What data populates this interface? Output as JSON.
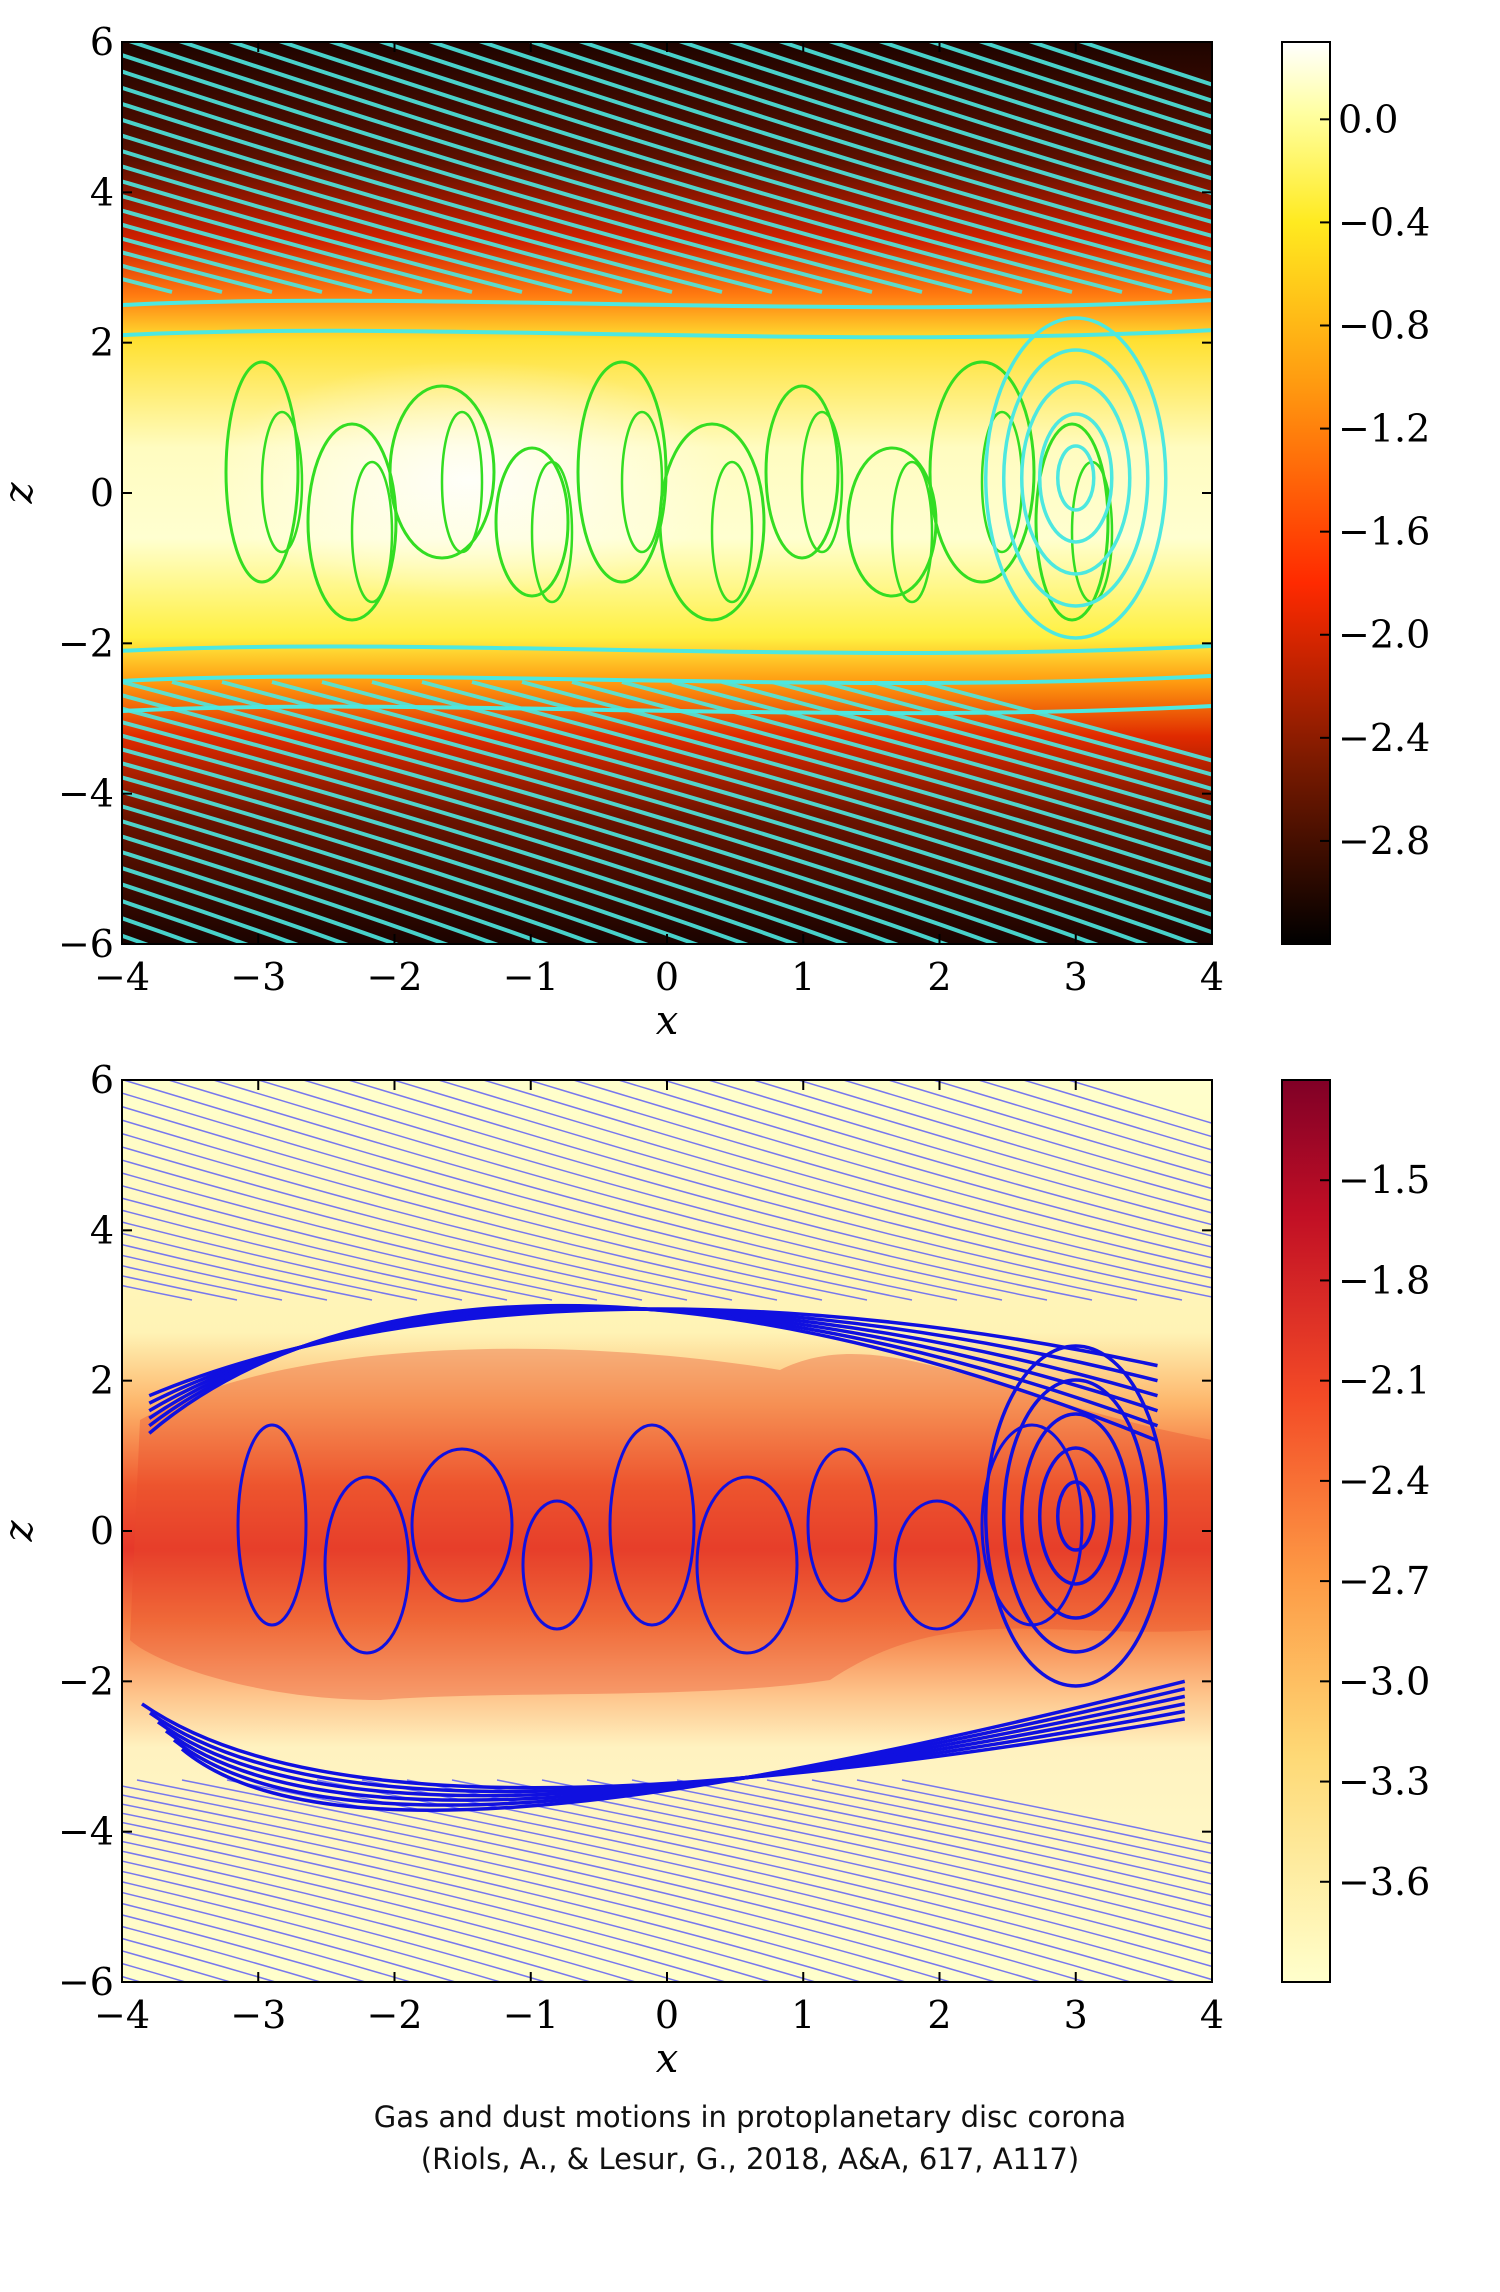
{
  "chart_data": [
    {
      "type": "heatmap",
      "panel": "top",
      "xlabel": "x",
      "ylabel": "z",
      "xlim": [
        -4,
        4
      ],
      "ylim": [
        -6,
        6
      ],
      "xticks": [
        -4,
        -3,
        -2,
        -1,
        0,
        1,
        2,
        3,
        4
      ],
      "yticks": [
        -6,
        -4,
        -2,
        0,
        2,
        4,
        6
      ],
      "colormap": "afmhot",
      "colorbar": {
        "range": [
          -3.2,
          0.3
        ],
        "ticks": [
          0.0,
          -0.4,
          -0.8,
          -1.2,
          -1.6,
          -2.0,
          -2.4,
          -2.8
        ],
        "tick_labels": [
          "0.0",
          "−0.4",
          "−0.8",
          "−1.2",
          "−1.6",
          "−2.0",
          "−2.4",
          "−2.8"
        ]
      },
      "overlay": "streamlines",
      "streamline_colors": {
        "inner": "#33dd22",
        "outer": "#4de8e0"
      }
    },
    {
      "type": "heatmap",
      "panel": "bottom",
      "xlabel": "x",
      "ylabel": "z",
      "xlim": [
        -4,
        4
      ],
      "ylim": [
        -6,
        6
      ],
      "xticks": [
        -4,
        -3,
        -2,
        -1,
        0,
        1,
        2,
        3,
        4
      ],
      "yticks": [
        -6,
        -4,
        -2,
        0,
        2,
        4,
        6
      ],
      "colormap": "YlOrRd",
      "colorbar": {
        "range": [
          -3.9,
          -1.2
        ],
        "ticks": [
          -1.5,
          -1.8,
          -2.1,
          -2.4,
          -2.7,
          -3.0,
          -3.3,
          -3.6
        ],
        "tick_labels": [
          "−1.5",
          "−1.8",
          "−2.1",
          "−2.4",
          "−2.7",
          "−3.0",
          "−3.3",
          "−3.6"
        ]
      },
      "overlay": "streamlines",
      "streamline_colors": {
        "strong": "#1010e0",
        "weak": "#7777ee"
      }
    }
  ],
  "caption": {
    "line1": "Gas and dust motions in protoplanetary disc corona",
    "line2": "(Riols, A., & Lesur, G., 2018, A&A, 617, A117)"
  }
}
